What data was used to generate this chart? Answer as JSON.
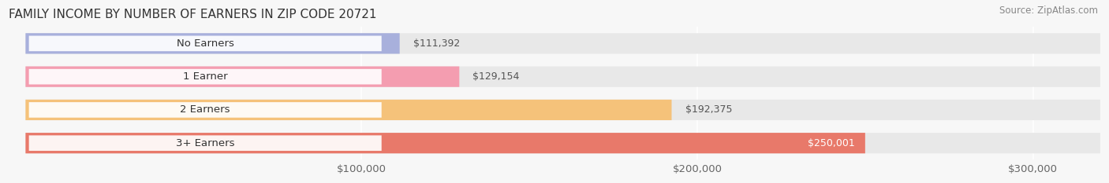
{
  "title": "FAMILY INCOME BY NUMBER OF EARNERS IN ZIP CODE 20721",
  "source": "Source: ZipAtlas.com",
  "categories": [
    "No Earners",
    "1 Earner",
    "2 Earners",
    "3+ Earners"
  ],
  "values": [
    111392,
    129154,
    192375,
    250001
  ],
  "bar_colors": [
    "#a8b0dc",
    "#f49db0",
    "#f5c27a",
    "#e8796a"
  ],
  "value_labels": [
    "$111,392",
    "$129,154",
    "$192,375",
    "$250,001"
  ],
  "xmin": 0,
  "xmax": 320000,
  "xticks": [
    100000,
    200000,
    300000
  ],
  "xtick_labels": [
    "$100,000",
    "$200,000",
    "$300,000"
  ],
  "background_color": "#f7f7f7",
  "bar_bg_color": "#e8e8e8",
  "title_fontsize": 11,
  "label_fontsize": 9.5,
  "value_fontsize": 9,
  "source_fontsize": 8.5,
  "bar_height": 0.62,
  "bar_gap": 0.38
}
